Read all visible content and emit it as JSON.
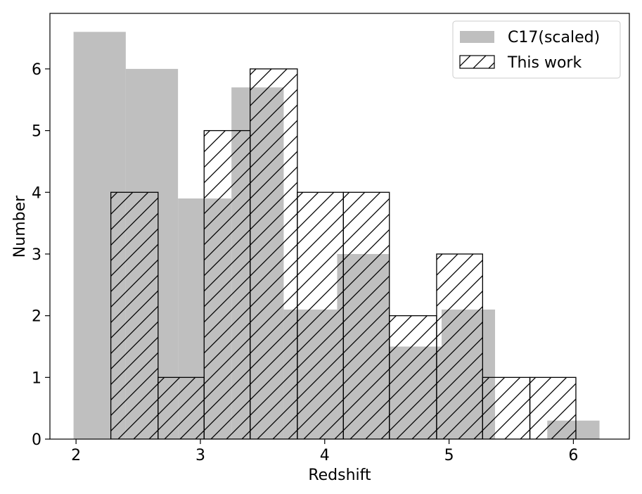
{
  "chart_data": {
    "type": "bar",
    "xlabel": "Redshift",
    "ylabel": "Number",
    "xlim": [
      1.79,
      6.45
    ],
    "ylim": [
      0,
      6.9
    ],
    "x_ticks": [
      "2",
      "3",
      "4",
      "5",
      "6"
    ],
    "y_ticks": [
      "0",
      "1",
      "2",
      "3",
      "4",
      "5",
      "6"
    ],
    "legend_position": "top-right",
    "grid": false,
    "series": [
      {
        "name": "C17(scaled)",
        "style": "filled",
        "color": "#bfbfbf",
        "bins": [
          {
            "x0": 1.98,
            "x1": 2.4,
            "value": 6.6
          },
          {
            "x0": 2.4,
            "x1": 2.82,
            "value": 6.0
          },
          {
            "x0": 2.82,
            "x1": 3.25,
            "value": 3.9
          },
          {
            "x0": 3.25,
            "x1": 3.67,
            "value": 5.7
          },
          {
            "x0": 3.67,
            "x1": 4.1,
            "value": 2.1
          },
          {
            "x0": 4.1,
            "x1": 4.52,
            "value": 3.0
          },
          {
            "x0": 4.52,
            "x1": 4.94,
            "value": 1.5
          },
          {
            "x0": 4.94,
            "x1": 5.37,
            "value": 2.1
          },
          {
            "x0": 5.37,
            "x1": 5.79,
            "value": 0.0
          },
          {
            "x0": 5.79,
            "x1": 6.21,
            "value": 0.3
          }
        ]
      },
      {
        "name": "This work",
        "style": "hatched",
        "color": "#000000",
        "bins": [
          {
            "x0": 2.28,
            "x1": 2.66,
            "value": 4
          },
          {
            "x0": 2.66,
            "x1": 3.03,
            "value": 1
          },
          {
            "x0": 3.03,
            "x1": 3.4,
            "value": 5
          },
          {
            "x0": 3.4,
            "x1": 3.78,
            "value": 6
          },
          {
            "x0": 3.78,
            "x1": 4.15,
            "value": 4
          },
          {
            "x0": 4.15,
            "x1": 4.52,
            "value": 4
          },
          {
            "x0": 4.52,
            "x1": 4.9,
            "value": 2
          },
          {
            "x0": 4.9,
            "x1": 5.27,
            "value": 3
          },
          {
            "x0": 5.27,
            "x1": 5.65,
            "value": 1
          },
          {
            "x0": 5.65,
            "x1": 6.02,
            "value": 1
          }
        ]
      }
    ]
  }
}
